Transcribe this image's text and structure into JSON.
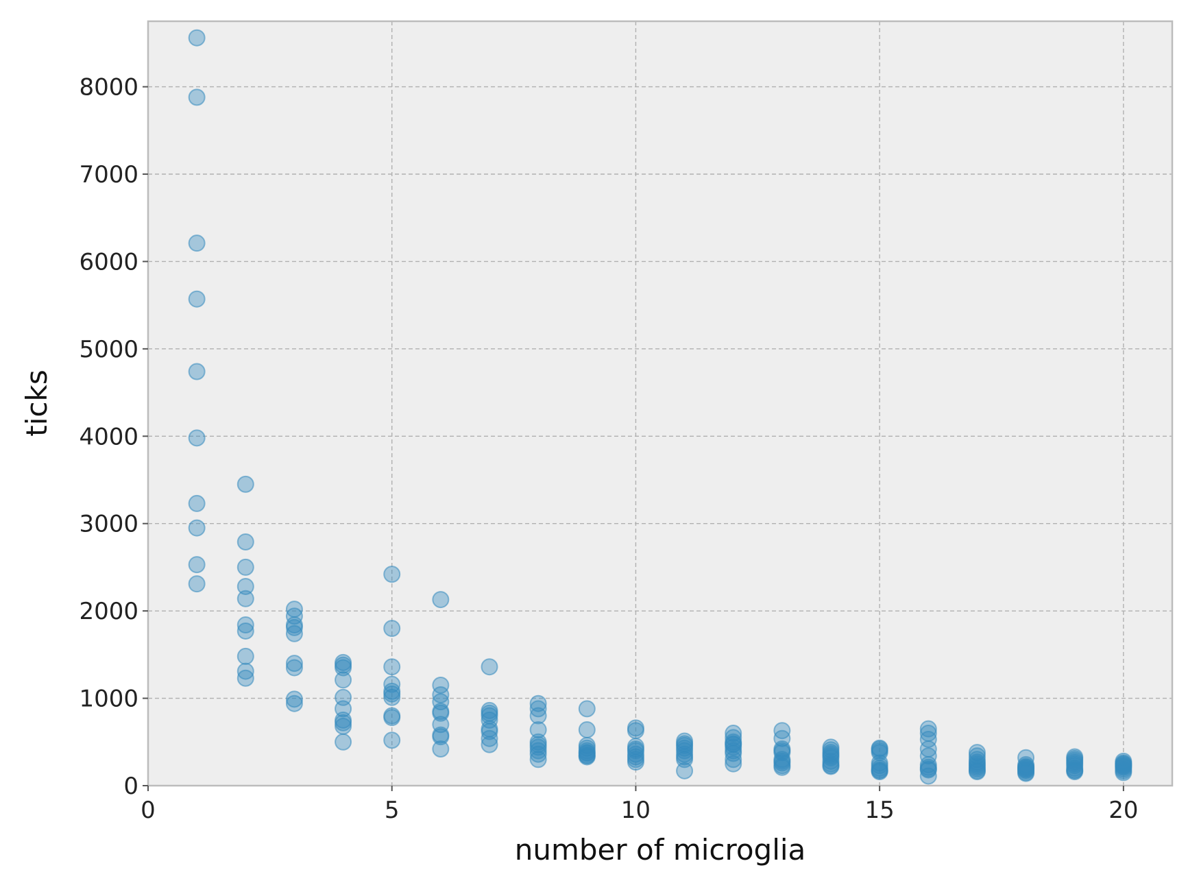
{
  "chart_data": {
    "type": "scatter",
    "title": "",
    "xlabel": "number of microglia",
    "ylabel": "ticks",
    "xlim": [
      0,
      21
    ],
    "ylim": [
      0,
      8750
    ],
    "xticks": [
      0,
      5,
      10,
      15,
      20
    ],
    "yticks": [
      0,
      1000,
      2000,
      3000,
      4000,
      5000,
      6000,
      7000,
      8000
    ],
    "grid": true,
    "colors": {
      "marker": "#348abd",
      "plot_background": "#eeeeee",
      "grid": "#b0b0b0",
      "frame": "#bcbcbc"
    },
    "series": [
      {
        "points": [
          [
            1,
            8560
          ],
          [
            1,
            7880
          ],
          [
            1,
            6210
          ],
          [
            1,
            5570
          ],
          [
            1,
            4740
          ],
          [
            1,
            3980
          ],
          [
            1,
            3230
          ],
          [
            1,
            2950
          ],
          [
            1,
            2530
          ],
          [
            1,
            2310
          ],
          [
            2,
            3450
          ],
          [
            2,
            2790
          ],
          [
            2,
            2500
          ],
          [
            2,
            2280
          ],
          [
            2,
            2140
          ],
          [
            2,
            1840
          ],
          [
            2,
            1770
          ],
          [
            2,
            1480
          ],
          [
            2,
            1310
          ],
          [
            2,
            1230
          ],
          [
            3,
            2020
          ],
          [
            3,
            1940
          ],
          [
            3,
            1840
          ],
          [
            3,
            1810
          ],
          [
            3,
            1740
          ],
          [
            3,
            1400
          ],
          [
            3,
            1350
          ],
          [
            3,
            990
          ],
          [
            3,
            940
          ],
          [
            4,
            1410
          ],
          [
            4,
            1380
          ],
          [
            4,
            1350
          ],
          [
            4,
            1210
          ],
          [
            4,
            1010
          ],
          [
            4,
            880
          ],
          [
            4,
            750
          ],
          [
            4,
            720
          ],
          [
            4,
            680
          ],
          [
            4,
            500
          ],
          [
            5,
            2420
          ],
          [
            5,
            1800
          ],
          [
            5,
            1360
          ],
          [
            5,
            1160
          ],
          [
            5,
            1080
          ],
          [
            5,
            1050
          ],
          [
            5,
            1010
          ],
          [
            5,
            800
          ],
          [
            5,
            780
          ],
          [
            5,
            520
          ],
          [
            6,
            2130
          ],
          [
            6,
            1150
          ],
          [
            6,
            1040
          ],
          [
            6,
            960
          ],
          [
            6,
            850
          ],
          [
            6,
            830
          ],
          [
            6,
            700
          ],
          [
            6,
            580
          ],
          [
            6,
            560
          ],
          [
            6,
            420
          ],
          [
            7,
            1360
          ],
          [
            7,
            860
          ],
          [
            7,
            830
          ],
          [
            7,
            800
          ],
          [
            7,
            750
          ],
          [
            7,
            650
          ],
          [
            7,
            620
          ],
          [
            7,
            540
          ],
          [
            7,
            470
          ],
          [
            8,
            940
          ],
          [
            8,
            880
          ],
          [
            8,
            800
          ],
          [
            8,
            640
          ],
          [
            8,
            500
          ],
          [
            8,
            470
          ],
          [
            8,
            440
          ],
          [
            8,
            400
          ],
          [
            8,
            360
          ],
          [
            8,
            300
          ],
          [
            9,
            880
          ],
          [
            9,
            640
          ],
          [
            9,
            460
          ],
          [
            9,
            430
          ],
          [
            9,
            400
          ],
          [
            9,
            380
          ],
          [
            9,
            370
          ],
          [
            9,
            350
          ],
          [
            9,
            340
          ],
          [
            9,
            330
          ],
          [
            10,
            660
          ],
          [
            10,
            630
          ],
          [
            10,
            450
          ],
          [
            10,
            420
          ],
          [
            10,
            400
          ],
          [
            10,
            360
          ],
          [
            10,
            330
          ],
          [
            10,
            300
          ],
          [
            10,
            270
          ],
          [
            11,
            510
          ],
          [
            11,
            480
          ],
          [
            11,
            460
          ],
          [
            11,
            430
          ],
          [
            11,
            400
          ],
          [
            11,
            360
          ],
          [
            11,
            330
          ],
          [
            11,
            300
          ],
          [
            11,
            170
          ],
          [
            12,
            600
          ],
          [
            12,
            550
          ],
          [
            12,
            500
          ],
          [
            12,
            480
          ],
          [
            12,
            470
          ],
          [
            12,
            440
          ],
          [
            12,
            400
          ],
          [
            12,
            370
          ],
          [
            12,
            300
          ],
          [
            12,
            250
          ],
          [
            13,
            630
          ],
          [
            13,
            540
          ],
          [
            13,
            420
          ],
          [
            13,
            400
          ],
          [
            13,
            380
          ],
          [
            13,
            300
          ],
          [
            13,
            280
          ],
          [
            13,
            260
          ],
          [
            13,
            230
          ],
          [
            13,
            210
          ],
          [
            14,
            440
          ],
          [
            14,
            410
          ],
          [
            14,
            380
          ],
          [
            14,
            360
          ],
          [
            14,
            340
          ],
          [
            14,
            320
          ],
          [
            14,
            280
          ],
          [
            14,
            250
          ],
          [
            14,
            230
          ],
          [
            14,
            220
          ],
          [
            15,
            430
          ],
          [
            15,
            420
          ],
          [
            15,
            400
          ],
          [
            15,
            380
          ],
          [
            15,
            260
          ],
          [
            15,
            230
          ],
          [
            15,
            200
          ],
          [
            15,
            180
          ],
          [
            15,
            170
          ],
          [
            15,
            160
          ],
          [
            16,
            650
          ],
          [
            16,
            600
          ],
          [
            16,
            530
          ],
          [
            16,
            420
          ],
          [
            16,
            340
          ],
          [
            16,
            240
          ],
          [
            16,
            210
          ],
          [
            16,
            190
          ],
          [
            16,
            180
          ],
          [
            16,
            110
          ],
          [
            17,
            380
          ],
          [
            17,
            340
          ],
          [
            17,
            300
          ],
          [
            17,
            270
          ],
          [
            17,
            250
          ],
          [
            17,
            230
          ],
          [
            17,
            210
          ],
          [
            17,
            190
          ],
          [
            17,
            170
          ],
          [
            17,
            160
          ],
          [
            18,
            320
          ],
          [
            18,
            240
          ],
          [
            18,
            220
          ],
          [
            18,
            210
          ],
          [
            18,
            200
          ],
          [
            18,
            190
          ],
          [
            18,
            180
          ],
          [
            18,
            170
          ],
          [
            18,
            150
          ],
          [
            18,
            140
          ],
          [
            19,
            330
          ],
          [
            19,
            310
          ],
          [
            19,
            290
          ],
          [
            19,
            270
          ],
          [
            19,
            250
          ],
          [
            19,
            230
          ],
          [
            19,
            200
          ],
          [
            19,
            180
          ],
          [
            19,
            170
          ],
          [
            19,
            160
          ],
          [
            20,
            280
          ],
          [
            20,
            260
          ],
          [
            20,
            250
          ],
          [
            20,
            240
          ],
          [
            20,
            230
          ],
          [
            20,
            220
          ],
          [
            20,
            210
          ],
          [
            20,
            190
          ],
          [
            20,
            170
          ],
          [
            20,
            150
          ]
        ]
      }
    ]
  }
}
